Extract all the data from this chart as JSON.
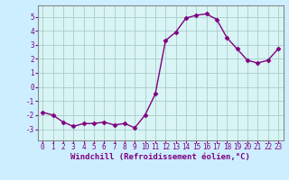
{
  "x": [
    0,
    1,
    2,
    3,
    4,
    5,
    6,
    7,
    8,
    9,
    10,
    11,
    12,
    13,
    14,
    15,
    16,
    17,
    18,
    19,
    20,
    21,
    22,
    23
  ],
  "y": [
    -1.8,
    -2.0,
    -2.5,
    -2.8,
    -2.6,
    -2.6,
    -2.5,
    -2.7,
    -2.6,
    -2.9,
    -2.0,
    -0.5,
    3.3,
    3.9,
    4.9,
    5.1,
    5.2,
    4.8,
    3.5,
    2.7,
    1.9,
    1.7,
    1.9,
    2.7
  ],
  "line_color": "#800080",
  "marker": "D",
  "marker_size": 2.5,
  "bg_color": "#cceeff",
  "plot_bg_color": "#d8f4f4",
  "grid_color": "#aacccc",
  "xlabel": "Windchill (Refroidissement éolien,°C)",
  "xlabel_color": "#800080",
  "tick_color": "#800080",
  "ylim": [
    -3.8,
    5.8
  ],
  "xlim": [
    -0.5,
    23.5
  ],
  "yticks": [
    -3,
    -2,
    -1,
    0,
    1,
    2,
    3,
    4,
    5
  ],
  "xticks": [
    0,
    1,
    2,
    3,
    4,
    5,
    6,
    7,
    8,
    9,
    10,
    11,
    12,
    13,
    14,
    15,
    16,
    17,
    18,
    19,
    20,
    21,
    22,
    23
  ],
  "tick_fontsize": 5.5,
  "xlabel_fontsize": 6.5,
  "linewidth": 1.0
}
